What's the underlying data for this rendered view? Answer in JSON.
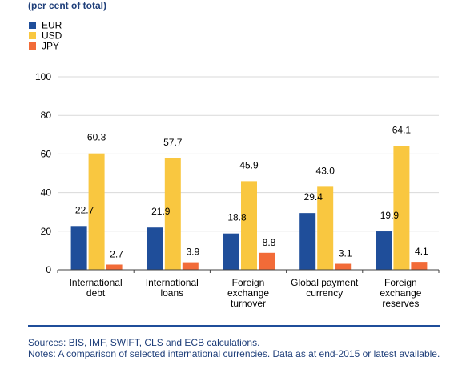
{
  "subtitle": "(per cent of total)",
  "chart_data": {
    "type": "bar",
    "categories": [
      "International debt",
      "International loans",
      "Foreign exchange turnover",
      "Global payment currency",
      "Foreign exchange reserves"
    ],
    "category_lines": [
      [
        "International",
        "debt"
      ],
      [
        "International",
        "loans"
      ],
      [
        "Foreign",
        "exchange",
        "turnover"
      ],
      [
        "Global payment",
        "currency"
      ],
      [
        "Foreign",
        "exchange",
        "reserves"
      ]
    ],
    "series": [
      {
        "name": "EUR",
        "color": "#1f4e9a",
        "values": [
          22.7,
          21.9,
          18.8,
          29.4,
          19.9
        ],
        "labels": [
          "22.7",
          "21.9",
          "18.8",
          "29.4",
          "19.9"
        ]
      },
      {
        "name": "USD",
        "color": "#f9c740",
        "values": [
          60.3,
          57.7,
          45.9,
          43.0,
          64.1
        ],
        "labels": [
          "60.3",
          "57.7",
          "45.9",
          "43.0",
          "64.1"
        ]
      },
      {
        "name": "JPY",
        "color": "#f26b38",
        "values": [
          2.7,
          3.9,
          8.8,
          3.1,
          4.1
        ],
        "labels": [
          "2.7",
          "3.9",
          "8.8",
          "3.1",
          "4.1"
        ]
      }
    ],
    "ylim": [
      0,
      100
    ],
    "yticks": [
      0,
      20,
      40,
      60,
      80,
      100
    ],
    "grid": true,
    "legend": "top-left"
  },
  "footer": {
    "sources": "Sources: BIS, IMF, SWIFT, CLS and ECB calculations.",
    "notes": "Notes: A comparison of selected international currencies. Data as at end-2015 or latest available."
  }
}
